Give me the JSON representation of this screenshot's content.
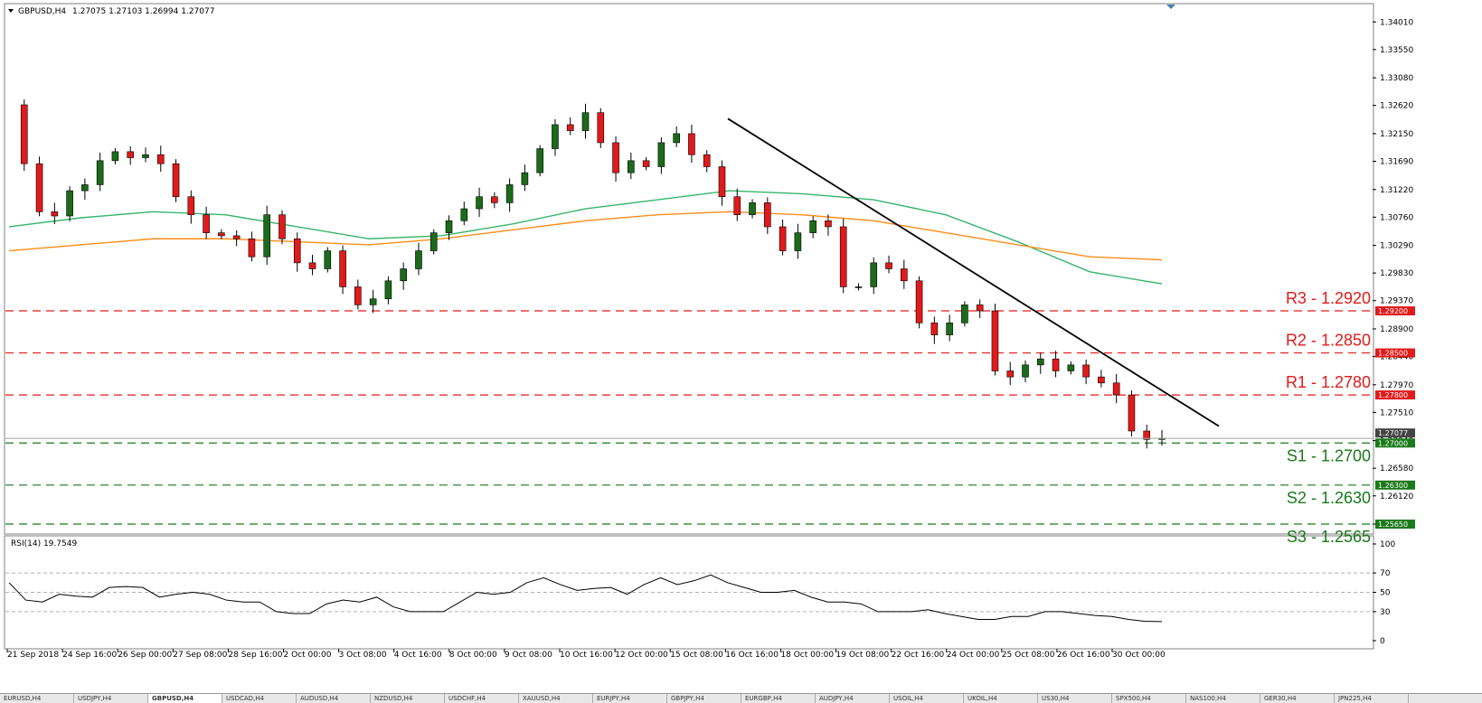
{
  "header": {
    "symbol_timeframe": "GBPUSD,H4",
    "ohlc": "1.27075 1.27103 1.26994 1.27077",
    "rsi_title": "RSI(14) 19.7549"
  },
  "colors": {
    "bull": "#1a6b1a",
    "bear": "#e21a1a",
    "ma_fast": "#36b56a",
    "ma_slow": "#ff8c1a",
    "resistance": "#e21a1a",
    "support": "#1a7a1a",
    "trendline": "#000000"
  },
  "chart_data": [
    {
      "type": "candlestick",
      "symbol": "GBPUSD",
      "timeframe": "H4",
      "price_axis": {
        "range": [
          1.255,
          1.343
        ],
        "ticks": [
          "1.34010",
          "1.33550",
          "1.33080",
          "1.32620",
          "1.32150",
          "1.31690",
          "1.31220",
          "1.30760",
          "1.30290",
          "1.29830",
          "1.29370",
          "1.28900",
          "1.28440",
          "1.27970",
          "1.27510",
          "1.27040",
          "1.26580",
          "1.26120",
          "1.25650"
        ]
      },
      "time_axis_labels": [
        "21 Sep 2018",
        "24 Sep 16:00",
        "26 Sep 00:00",
        "27 Sep 08:00",
        "28 Sep 16:00",
        "2 Oct 00:00",
        "3 Oct 08:00",
        "4 Oct 16:00",
        "8 Oct 00:00",
        "9 Oct 08:00",
        "10 Oct 16:00",
        "12 Oct 00:00",
        "15 Oct 08:00",
        "16 Oct 16:00",
        "18 Oct 00:00",
        "19 Oct 08:00",
        "22 Oct 16:00",
        "24 Oct 00:00",
        "25 Oct 08:00",
        "26 Oct 16:00",
        "30 Oct 00:00"
      ],
      "close_path": [
        1.3263,
        1.3165,
        1.3085,
        1.3078,
        1.312,
        1.313,
        1.317,
        1.3185,
        1.3175,
        1.318,
        1.3165,
        1.311,
        1.308,
        1.305,
        1.3045,
        1.304,
        1.301,
        1.308,
        1.304,
        1.3,
        1.299,
        1.302,
        1.296,
        1.293,
        1.294,
        1.297,
        1.299,
        1.302,
        1.305,
        1.307,
        1.309,
        1.311,
        1.31,
        1.313,
        1.315,
        1.319,
        1.323,
        1.322,
        1.325,
        1.32,
        1.315,
        1.317,
        1.316,
        1.32,
        1.3215,
        1.318,
        1.316,
        1.311,
        1.308,
        1.31,
        1.306,
        1.302,
        1.305,
        1.307,
        1.306,
        1.296,
        1.296,
        1.3,
        1.299,
        1.297,
        1.29,
        1.288,
        1.29,
        1.293,
        1.292,
        1.282,
        1.281,
        1.283,
        1.284,
        1.282,
        1.283,
        1.281,
        1.28,
        1.278,
        1.272,
        1.2706,
        1.2708
      ],
      "moving_averages": [
        {
          "color_key": "ma_fast",
          "values": [
            1.306,
            1.3075,
            1.3085,
            1.308,
            1.306,
            1.304,
            1.3045,
            1.3065,
            1.309,
            1.3105,
            1.312,
            1.3115,
            1.3105,
            1.308,
            1.3035,
            1.2985,
            1.2965
          ]
        },
        {
          "color_key": "ma_slow",
          "values": [
            1.302,
            1.303,
            1.304,
            1.304,
            1.3035,
            1.303,
            1.304,
            1.3055,
            1.307,
            1.308,
            1.3085,
            1.308,
            1.307,
            1.305,
            1.303,
            1.301,
            1.3005
          ]
        }
      ],
      "trendline": {
        "from": [
          "15 Oct 08:00",
          1.324
        ],
        "to": [
          "30 Oct 16:00",
          1.2728
        ]
      },
      "levels": [
        {
          "name": "R3",
          "value": "1.2920",
          "label": "R3 - 1.2920",
          "tag": "1.29200",
          "kind": "resistance"
        },
        {
          "name": "R2",
          "value": "1.2850",
          "label": "R2 - 1.2850",
          "tag": "1.28500",
          "kind": "resistance"
        },
        {
          "name": "R1",
          "value": "1.2780",
          "label": "R1 - 1.2780",
          "tag": "1.27800",
          "kind": "resistance"
        },
        {
          "name": "S1",
          "value": "1.2700",
          "label": "S1 - 1.2700",
          "tag": "1.27000",
          "kind": "support"
        },
        {
          "name": "S2",
          "value": "1.2630",
          "label": "S2 - 1.2630",
          "tag": "1.26300",
          "kind": "support"
        },
        {
          "name": "S3",
          "value": "1.2565",
          "label": "S3 - 1.2565",
          "tag": "1.25650",
          "kind": "support"
        }
      ],
      "current_price": "1.27077"
    },
    {
      "type": "line",
      "indicator": "RSI(14)",
      "value": 19.7549,
      "y_range": [
        0,
        100
      ],
      "y_ticks": [
        "100",
        "70",
        "50",
        "30",
        "0"
      ],
      "levels": [
        30,
        50,
        70
      ],
      "values": [
        60,
        42,
        40,
        48,
        46,
        45,
        55,
        56,
        55,
        45,
        48,
        50,
        48,
        42,
        40,
        40,
        30,
        28,
        28,
        38,
        42,
        40,
        45,
        35,
        30,
        30,
        30,
        40,
        50,
        48,
        50,
        60,
        65,
        58,
        52,
        54,
        55,
        48,
        58,
        65,
        58,
        62,
        68,
        60,
        55,
        50,
        50,
        52,
        45,
        40,
        40,
        38,
        30,
        30,
        30,
        32,
        28,
        25,
        22,
        22,
        25,
        25,
        30,
        30,
        28,
        26,
        25,
        22,
        20,
        19.75
      ],
      "grid": true
    }
  ],
  "tabs": [
    "EURUSD,H4",
    "USDJPY,H4",
    "GBPUSD,H4",
    "USDCAD,H4",
    "AUDUSD,H4",
    "NZDUSD,H4",
    "USDCHF,H4",
    "XAUUSD,H4",
    "EURJPY,H4",
    "GBPJPY,H4",
    "EURGBP,H4",
    "AUDJPY,H4",
    "USOIL,H4",
    "UKOIL,H4",
    "US30,H4",
    "SPX500,H4",
    "NAS100,H4",
    "GER30,H4",
    "JPN225,H4"
  ]
}
